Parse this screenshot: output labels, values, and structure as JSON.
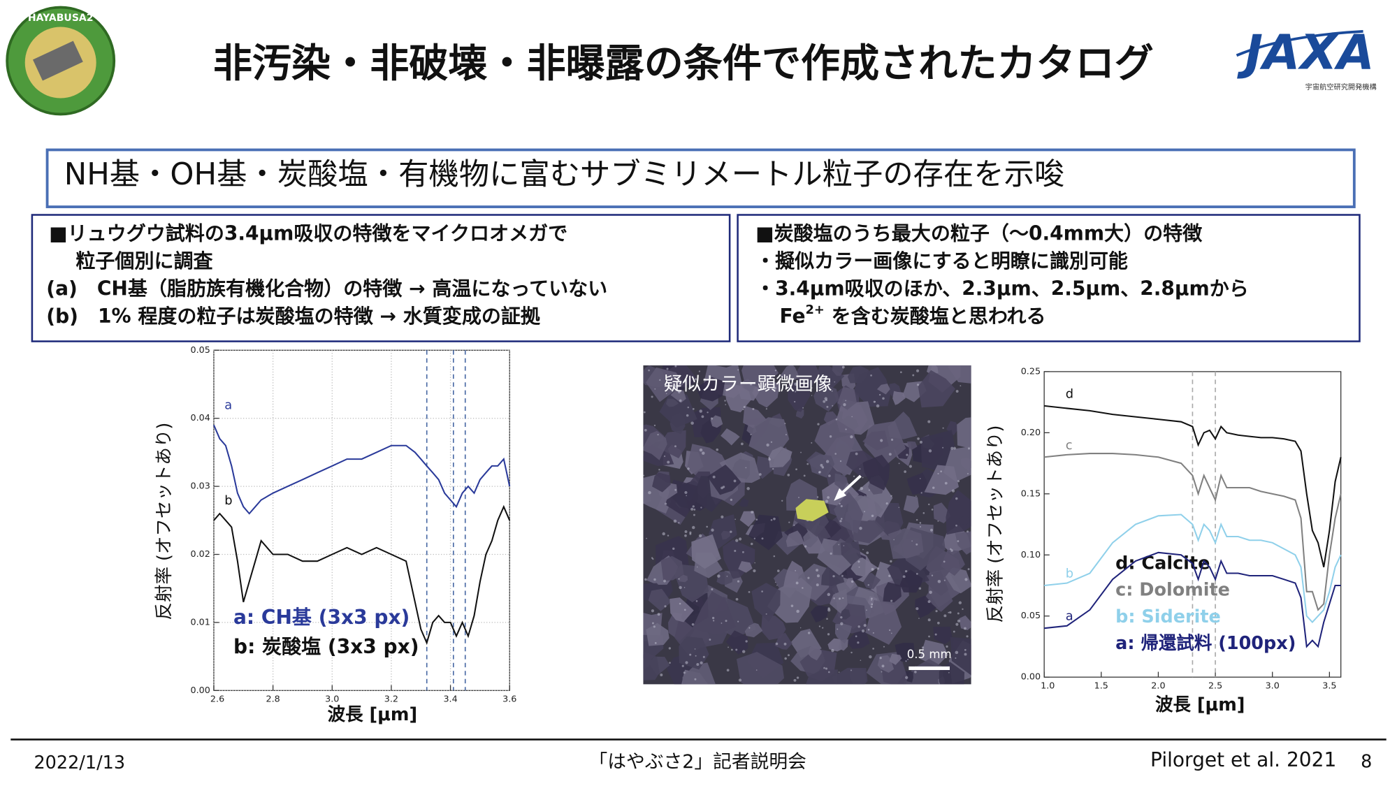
{
  "header": {
    "title": "非汚染・非破壊・非曝露の条件で作成されたカタログ",
    "badge": "HAYABUSA2",
    "logo": "JAXA",
    "logo_subtitle": "宇宙航空研究開発機構"
  },
  "summary": "NH基・OH基・炭酸塩・有機物に富むサブミリメートル粒子の存在を示唆",
  "left_box": {
    "lines": [
      "■リュウグウ試料の3.4μm吸収の特徴をマイクロオメガで",
      "粒子個別に調査",
      "(a)　CH基（脂肪族有機化合物）の特徴 → 高温になっていない",
      "(b)　1% 程度の粒子は炭酸塩の特徴 → 水質変成の証拠"
    ]
  },
  "right_box": {
    "lines": [
      "■炭酸塩のうち最大の粒子（～0.4mm大）の特徴",
      "・擬似カラー画像にすると明瞭に識別可能",
      "・3.4μm吸収のほか、2.3μm、2.5μm、2.8μmから"
    ],
    "last_line": {
      "text": "Fe",
      "sup": "2+",
      "rest": " を含む炭酸塩と思われる"
    }
  },
  "image": {
    "caption": "疑似カラー顕微画像",
    "scale_bar": "0.5 mm"
  },
  "chart_data": [
    {
      "type": "line",
      "x_label": "波長 [μm]",
      "y_label": "反射率 (オフセットあり)",
      "grid": true,
      "xlim": [
        2.6,
        3.6
      ],
      "ylim": [
        0,
        0.05
      ],
      "xticks": [
        2.6,
        2.8,
        {
          "value": 3,
          "label": "3.0"
        },
        3.2,
        3.4,
        3.6
      ],
      "yticks": [
        {
          "value": 0,
          "label": "0.00"
        },
        0.01,
        0.02,
        0.03,
        0.04,
        0.05
      ],
      "vlines": [
        3.32,
        3.41,
        3.45
      ],
      "vline_color": "#4a6aa5",
      "x": [
        2.6,
        2.62,
        2.64,
        2.66,
        2.68,
        2.7,
        2.72,
        2.74,
        2.76,
        2.8,
        2.85,
        2.9,
        2.95,
        3.0,
        3.05,
        3.1,
        3.15,
        3.2,
        3.25,
        3.28,
        3.3,
        3.32,
        3.34,
        3.36,
        3.38,
        3.4,
        3.42,
        3.44,
        3.46,
        3.48,
        3.5,
        3.52,
        3.54,
        3.56,
        3.58,
        3.6
      ],
      "series": [
        {
          "name": "a: CH基 (3x3 px)",
          "label": "a",
          "color": "#2a3a9a",
          "values": [
            0.039,
            0.037,
            0.036,
            0.033,
            0.029,
            0.027,
            0.026,
            0.027,
            0.028,
            0.029,
            0.03,
            0.031,
            0.032,
            0.033,
            0.034,
            0.034,
            0.035,
            0.036,
            0.036,
            0.035,
            0.034,
            0.033,
            0.032,
            0.031,
            0.029,
            0.028,
            0.027,
            0.029,
            0.03,
            0.029,
            0.031,
            0.032,
            0.033,
            0.033,
            0.034,
            0.03
          ]
        },
        {
          "name": "b: 炭酸塩 (3x3 px)",
          "label": "b",
          "color": "#111111",
          "values": [
            0.025,
            0.026,
            0.025,
            0.024,
            0.019,
            0.013,
            0.016,
            0.019,
            0.022,
            0.02,
            0.02,
            0.019,
            0.019,
            0.02,
            0.021,
            0.02,
            0.021,
            0.02,
            0.019,
            0.013,
            0.009,
            0.007,
            0.01,
            0.011,
            0.01,
            0.01,
            0.008,
            0.01,
            0.008,
            0.011,
            0.016,
            0.02,
            0.022,
            0.025,
            0.027,
            0.025
          ]
        }
      ]
    },
    {
      "type": "line",
      "x_label": "波長 [μm]",
      "y_label": "反射率 (オフセットあり)",
      "grid": false,
      "xlim": [
        1.0,
        3.6
      ],
      "ylim": [
        0,
        0.25
      ],
      "xticks": [
        {
          "value": 1,
          "label": "1.0"
        },
        1.5,
        {
          "value": 2,
          "label": "2.0"
        },
        2.5,
        {
          "value": 3,
          "label": "3.0"
        },
        3.5
      ],
      "yticks": [
        {
          "value": 0,
          "label": "0.00"
        },
        0.05,
        {
          "value": 0.1,
          "label": "0.10"
        },
        0.15,
        {
          "value": 0.2,
          "label": "0.20"
        },
        0.25
      ],
      "vlines": [
        2.3,
        2.5
      ],
      "vline_color": "#aaaaaa",
      "x": [
        1.0,
        1.2,
        1.4,
        1.6,
        1.8,
        2.0,
        2.2,
        2.3,
        2.35,
        2.4,
        2.45,
        2.5,
        2.55,
        2.6,
        2.7,
        2.8,
        2.9,
        3.0,
        3.1,
        3.2,
        3.25,
        3.3,
        3.35,
        3.4,
        3.45,
        3.5,
        3.55,
        3.6
      ],
      "series": [
        {
          "name": "d: Calcite",
          "label": "d",
          "color": "#111111",
          "values": [
            0.222,
            0.22,
            0.218,
            0.215,
            0.213,
            0.211,
            0.209,
            0.205,
            0.19,
            0.2,
            0.202,
            0.195,
            0.205,
            0.2,
            0.198,
            0.197,
            0.196,
            0.196,
            0.195,
            0.193,
            0.185,
            0.15,
            0.12,
            0.11,
            0.09,
            0.12,
            0.16,
            0.18
          ]
        },
        {
          "name": "c: Dolomite",
          "label": "c",
          "color": "#808080",
          "values": [
            0.18,
            0.182,
            0.183,
            0.183,
            0.182,
            0.18,
            0.175,
            0.165,
            0.15,
            0.165,
            0.155,
            0.145,
            0.165,
            0.155,
            0.155,
            0.155,
            0.152,
            0.15,
            0.148,
            0.145,
            0.13,
            0.07,
            0.07,
            0.055,
            0.06,
            0.1,
            0.13,
            0.15
          ]
        },
        {
          "name": "b: Siderite",
          "label": "b",
          "color": "#8fd0ea",
          "values": [
            0.075,
            0.077,
            0.085,
            0.11,
            0.125,
            0.132,
            0.133,
            0.125,
            0.112,
            0.125,
            0.12,
            0.11,
            0.125,
            0.115,
            0.115,
            0.112,
            0.112,
            0.11,
            0.105,
            0.1,
            0.09,
            0.05,
            0.045,
            0.05,
            0.055,
            0.07,
            0.09,
            0.1
          ]
        },
        {
          "name": "a: 帰還試料 (100px)",
          "label": "a",
          "color": "#1f237a",
          "values": [
            0.04,
            0.042,
            0.055,
            0.08,
            0.095,
            0.102,
            0.1,
            0.093,
            0.08,
            0.095,
            0.09,
            0.08,
            0.095,
            0.085,
            0.085,
            0.083,
            0.083,
            0.083,
            0.08,
            0.077,
            0.065,
            0.025,
            0.03,
            0.025,
            0.045,
            0.06,
            0.075,
            0.075
          ]
        }
      ]
    }
  ],
  "footer": {
    "date": "2022/1/13",
    "event": "「はやぶさ2」記者説明会",
    "citation": "Pilorget et al. 2021",
    "page": 8
  }
}
